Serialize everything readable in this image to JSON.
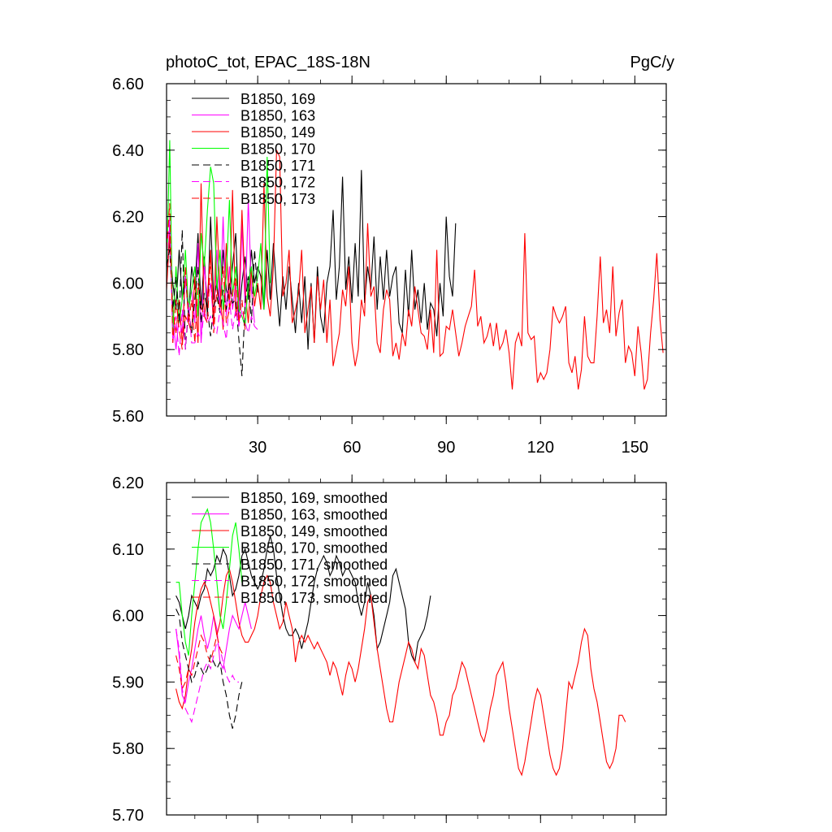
{
  "chart_data": [
    {
      "type": "line",
      "title": "photoC_tot, EPAC_18S-18N",
      "units": "PgC/y",
      "xlim": [
        1,
        160
      ],
      "ylim": [
        5.6,
        6.6
      ],
      "x_ticks": [
        30,
        60,
        90,
        120,
        150
      ],
      "x_tick_labels": [
        "30",
        "60",
        "90",
        "120",
        "150"
      ],
      "y_ticks": [
        5.6,
        5.8,
        6.0,
        6.2,
        6.4,
        6.6
      ],
      "y_tick_labels": [
        "5.60",
        "5.80",
        "6.00",
        "6.20",
        "6.40",
        "6.60"
      ],
      "legend_position": "top-left",
      "series": [
        {
          "name": "B1850, 169",
          "color": "#000000",
          "dash": "solid",
          "x0": 1,
          "values": [
            6.05,
            6.12,
            6.0,
            5.92,
            6.1,
            5.95,
            6.02,
            5.9,
            6.05,
            5.98,
            6.15,
            5.92,
            6.08,
            5.9,
            6.2,
            5.95,
            6.0,
            5.92,
            6.1,
            5.98,
            5.95,
            6.05,
            6.15,
            5.9,
            6.0,
            6.08,
            5.95,
            6.1,
            6.0,
            6.05,
            6.02,
            5.92,
            6.1,
            5.95,
            6.12,
            5.98,
            5.87,
            6.02,
            5.92,
            6.05,
            5.95,
            5.85,
            6.0,
            5.88,
            6.02,
            5.8,
            6.0,
            5.82,
            6.05,
            5.9,
            5.85,
            6.0,
            6.05,
            6.22,
            5.95,
            6.05,
            6.32,
            5.98,
            6.08,
            5.94,
            6.12,
            5.96,
            6.34,
            5.94,
            6.05,
            5.98,
            6.14,
            5.92,
            6.08,
            5.95,
            6.1,
            5.96,
            6.02,
            6.05,
            5.88,
            5.85,
            6.04,
            5.9,
            6.1,
            5.92,
            5.98,
            5.88,
            6.0,
            5.86,
            5.94,
            5.92,
            5.84,
            6.0,
            5.9,
            6.2,
            6.02,
            5.96,
            6.18
          ]
        },
        {
          "name": "B1850, 163",
          "color": "#ff00ff",
          "dash": "solid",
          "x0": 1,
          "values": [
            6.0,
            6.18,
            5.9,
            5.8,
            5.9,
            5.85,
            6.02,
            5.92,
            5.98,
            5.88,
            6.12,
            5.82,
            6.05,
            5.95,
            6.0,
            5.88,
            6.1,
            5.92,
            6.2,
            5.9,
            6.05,
            5.92,
            6.0,
            5.87,
            6.18,
            5.92,
            6.25,
            5.98,
            5.88
          ]
        },
        {
          "name": "B1850, 149",
          "color": "#ff0000",
          "dash": "solid",
          "x0": 1,
          "values": [
            5.98,
            6.15,
            5.92,
            5.85,
            5.95,
            5.82,
            5.9,
            5.88,
            5.85,
            6.02,
            5.82,
            6.3,
            5.9,
            5.96,
            6.1,
            5.88,
            6.2,
            5.98,
            5.86,
            6.12,
            5.92,
            6.28,
            5.9,
            5.95,
            6.22,
            5.98,
            5.88,
            6.04,
            5.93,
            6.0,
            5.92,
            6.3,
            5.96,
            5.9,
            6.05,
            6.4,
            6.38,
            5.96,
            6.0,
            6.1,
            5.88,
            5.92,
            5.97,
            6.1,
            5.85,
            5.92,
            5.99,
            5.82,
            6.02,
            5.92,
            6.01,
            5.82,
            5.95,
            5.75,
            5.8,
            5.85,
            5.98,
            5.93,
            6.05,
            5.82,
            5.75,
            5.8,
            5.95,
            5.9,
            6.18,
            5.96,
            5.99,
            5.82,
            5.79,
            5.92,
            5.98,
            5.95,
            5.78,
            5.82,
            5.77,
            5.85,
            5.81,
            5.92,
            5.87,
            5.99,
            5.92,
            5.85,
            5.84,
            5.8,
            5.92,
            5.79,
            6.1,
            5.78,
            5.79,
            5.87,
            5.86,
            5.92,
            5.85,
            5.78,
            5.82,
            5.87,
            5.9,
            5.93,
            6.04,
            5.87,
            5.9,
            5.82,
            5.84,
            5.88,
            5.81,
            5.88,
            5.8,
            5.82,
            5.86,
            5.79,
            5.68,
            5.82,
            5.85,
            5.81,
            6.15,
            5.85,
            5.83,
            5.84,
            5.7,
            5.73,
            5.71,
            5.73,
            5.8,
            5.93,
            5.9,
            5.88,
            5.9,
            5.93,
            5.76,
            5.73,
            5.78,
            5.68,
            5.74,
            5.9,
            5.78,
            5.76,
            5.76,
            5.9,
            6.08,
            5.88,
            5.92,
            5.85,
            6.05,
            5.84,
            5.91,
            5.95,
            5.76,
            5.81,
            5.79,
            5.72,
            5.87,
            5.79,
            5.68,
            5.71,
            5.85,
            5.95,
            6.09,
            5.89,
            5.79
          ]
        },
        {
          "name": "B1850, 170",
          "color": "#00ff00",
          "dash": "solid",
          "x0": 1,
          "values": [
            6.02,
            6.43,
            5.85,
            6.05,
            5.88,
            5.95,
            6.1,
            5.92,
            5.98,
            6.05,
            5.9,
            6.15,
            6.05,
            6.22,
            6.35,
            6.3,
            5.98,
            6.1,
            5.92,
            6.02,
            6.25,
            5.96,
            6.05,
            5.92,
            5.9,
            5.87,
            6.0,
            6.05,
            5.96,
            6.02,
            6.12,
            5.92,
            6.38,
            6.0
          ]
        },
        {
          "name": "B1850, 171",
          "color": "#000000",
          "dash": "dashed",
          "x0": 1,
          "values": [
            6.05,
            6.1,
            5.92,
            6.02,
            5.88,
            6.16,
            5.8,
            5.92,
            5.85,
            5.95,
            6.05,
            5.88,
            5.97,
            5.92,
            5.84,
            5.93,
            5.96,
            5.91,
            5.98,
            5.92,
            6.0,
            5.94,
            5.95,
            5.83,
            5.72,
            5.94,
            6.02,
            5.88,
            6.1,
            5.97
          ]
        },
        {
          "name": "B1850, 172",
          "color": "#ff00ff",
          "dash": "dashed",
          "x0": 1,
          "values": [
            6.1,
            6.2,
            5.82,
            5.9,
            5.78,
            5.92,
            5.8,
            5.94,
            5.82,
            5.82,
            5.85,
            5.83,
            5.92,
            5.88,
            5.9,
            5.87,
            5.85,
            5.92,
            5.88,
            5.83,
            5.95,
            5.86,
            5.92,
            5.87,
            5.92,
            5.88,
            5.85,
            5.9,
            5.87,
            5.86
          ]
        },
        {
          "name": "B1850, 173",
          "color": "#ff0000",
          "dash": "dashed",
          "x0": 1,
          "values": [
            6.1,
            6.24,
            5.82,
            5.95,
            5.86,
            5.8,
            6.05,
            5.88,
            5.95,
            5.82,
            6.0,
            5.93,
            5.9,
            5.88,
            6.08,
            5.85,
            5.98,
            5.92,
            6.05,
            5.88,
            5.92,
            5.97,
            6.02,
            5.88,
            5.95,
            5.86
          ]
        }
      ]
    },
    {
      "type": "line",
      "title": "",
      "xlim": [
        1,
        160
      ],
      "ylim": [
        5.7,
        6.2
      ],
      "x_ticks": [
        30,
        60,
        90,
        120,
        150
      ],
      "x_tick_labels": [],
      "y_ticks": [
        5.7,
        5.8,
        5.9,
        6.0,
        6.1,
        6.2
      ],
      "y_tick_labels": [
        "5.70",
        "5.80",
        "5.90",
        "6.00",
        "6.10",
        "6.20"
      ],
      "legend_position": "top-left",
      "series": [
        {
          "name": "B1850, 169, smoothed",
          "color": "#000000",
          "dash": "solid",
          "x0": 4,
          "values": [
            6.03,
            6.02,
            6.0,
            5.98,
            6.0,
            6.03,
            6.02,
            6.01,
            6.03,
            6.04,
            6.07,
            6.06,
            6.07,
            6.09,
            6.08,
            6.1,
            6.09,
            6.06,
            6.03,
            6.04,
            6.06,
            6.09,
            6.1,
            6.08,
            6.06,
            6.05,
            6.04,
            6.05,
            6.07,
            6.1,
            6.12,
            6.1,
            6.06,
            6.03,
            6.0,
            5.98,
            5.97,
            5.97,
            5.98,
            5.97,
            5.95,
            5.97,
            5.99,
            6.02,
            6.05,
            6.07,
            6.08,
            6.09,
            6.08,
            6.06,
            6.07,
            6.09,
            6.08,
            6.06,
            6.07,
            6.07,
            6.06,
            6.05,
            6.02,
            6.0,
            6.02,
            6.05,
            6.03,
            6.0,
            5.95,
            5.96,
            5.98,
            6.0,
            6.02,
            6.06,
            6.07,
            6.05,
            6.03,
            6.01,
            5.96,
            5.94,
            5.93,
            5.96,
            5.97,
            5.98,
            6.0,
            6.03
          ]
        },
        {
          "name": "B1850, 163, smoothed",
          "color": "#ff00ff",
          "dash": "solid",
          "x0": 4,
          "values": [
            5.98,
            5.94,
            5.88,
            5.87,
            5.9,
            5.92,
            5.95,
            5.98,
            6.0,
            5.97,
            5.95,
            5.97,
            6.0,
            5.98,
            5.93,
            5.92,
            5.95,
            5.98,
            6.0,
            5.99,
            5.98,
            6.0,
            6.02,
            6.0,
            5.98
          ]
        },
        {
          "name": "B1850, 149, smoothed",
          "color": "#ff0000",
          "dash": "solid",
          "x0": 4,
          "values": [
            5.89,
            5.87,
            5.86,
            5.88,
            5.92,
            5.95,
            5.99,
            6.02,
            6.04,
            6.05,
            6.04,
            6.02,
            6.0,
            5.97,
            5.99,
            6.03,
            6.06,
            6.07,
            6.05,
            6.02,
            5.99,
            5.97,
            5.96,
            5.96,
            5.97,
            5.98,
            6.0,
            6.03,
            6.05,
            6.06,
            6.05,
            6.02,
            6.0,
            5.98,
            5.99,
            6.02,
            6.0,
            5.98,
            5.93,
            5.96,
            5.97,
            5.96,
            5.97,
            5.96,
            5.95,
            5.96,
            5.95,
            5.94,
            5.93,
            5.91,
            5.93,
            5.92,
            5.9,
            5.88,
            5.91,
            5.93,
            5.92,
            5.9,
            5.92,
            5.95,
            5.98,
            6.02,
            6.03,
            5.99,
            5.95,
            5.92,
            5.89,
            5.86,
            5.84,
            5.84,
            5.87,
            5.9,
            5.92,
            5.94,
            5.96,
            5.95,
            5.93,
            5.92,
            5.95,
            5.94,
            5.91,
            5.88,
            5.87,
            5.85,
            5.82,
            5.82,
            5.84,
            5.85,
            5.88,
            5.89,
            5.91,
            5.93,
            5.92,
            5.9,
            5.88,
            5.86,
            5.84,
            5.82,
            5.81,
            5.83,
            5.86,
            5.88,
            5.91,
            5.92,
            5.93,
            5.9,
            5.86,
            5.83,
            5.8,
            5.77,
            5.76,
            5.78,
            5.81,
            5.84,
            5.87,
            5.89,
            5.88,
            5.85,
            5.82,
            5.79,
            5.77,
            5.76,
            5.77,
            5.8,
            5.85,
            5.9,
            5.89,
            5.91,
            5.93,
            5.96,
            5.98,
            5.97,
            5.92,
            5.89,
            5.87,
            5.84,
            5.81,
            5.78,
            5.77,
            5.78,
            5.8,
            5.85,
            5.85,
            5.84
          ]
        },
        {
          "name": "B1850, 170, smoothed",
          "color": "#00ff00",
          "dash": "solid",
          "x0": 4,
          "values": [
            6.05,
            6.05,
            6.0,
            5.96,
            5.94,
            6.0,
            6.05,
            6.1,
            6.14,
            6.15,
            6.16,
            6.14,
            6.1,
            6.05,
            6.0,
            5.98,
            6.02,
            6.07,
            6.12,
            6.14,
            6.1,
            6.05
          ]
        },
        {
          "name": "B1850, 171, smoothed",
          "color": "#000000",
          "dash": "dashed",
          "x0": 4,
          "values": [
            6.01,
            6.0,
            5.96,
            5.94,
            5.92,
            5.9,
            5.91,
            5.93,
            5.92,
            5.91,
            5.92,
            5.94,
            5.93,
            5.92,
            5.93,
            5.9,
            5.88,
            5.85,
            5.83,
            5.85,
            5.88,
            5.9
          ]
        },
        {
          "name": "B1850, 172, smoothed",
          "color": "#ff00ff",
          "dash": "dashed",
          "x0": 4,
          "values": [
            5.98,
            5.95,
            5.89,
            5.86,
            5.85,
            5.84,
            5.86,
            5.88,
            5.9,
            5.92,
            5.93,
            5.92,
            5.94,
            5.96,
            5.95,
            5.93,
            5.91,
            5.9,
            5.91,
            5.9,
            5.9
          ]
        },
        {
          "name": "B1850, 173, smoothed",
          "color": "#ff0000",
          "dash": "dashed",
          "x0": 4,
          "values": [
            5.94,
            5.92,
            5.89,
            5.9,
            5.92,
            5.91,
            5.93,
            5.95,
            5.97,
            5.96,
            5.94,
            5.93,
            5.95,
            5.97,
            5.95,
            5.94
          ]
        }
      ]
    }
  ]
}
